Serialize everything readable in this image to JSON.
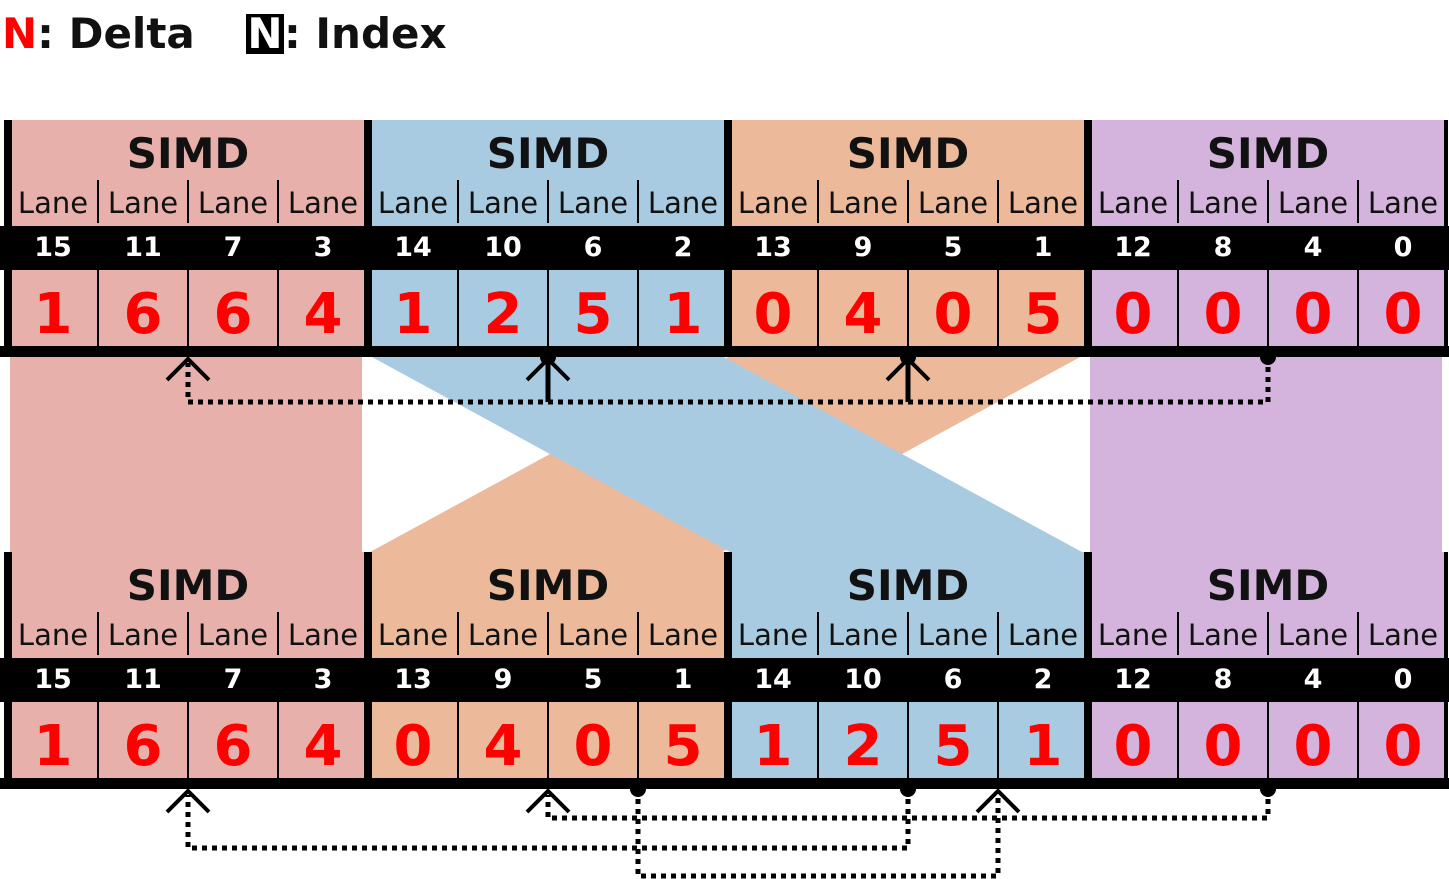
{
  "legend": {
    "delta_letter": "N",
    "delta_text": ": Delta",
    "index_letter": "N",
    "index_text": ": Index"
  },
  "colors": {
    "red": "#e8b0ab",
    "blue": "#a9cbe2",
    "orange": "#ecb99a",
    "purple": "#d4b4dc",
    "delta_text": "#ff0000",
    "bar": "#000000",
    "arrow": "#000000"
  },
  "lane_word": "Lane",
  "simd_word": "SIMD",
  "rows": [
    {
      "name": "top",
      "groups": [
        {
          "color": "red",
          "lanes": [
            {
              "index": "15",
              "delta": "1"
            },
            {
              "index": "11",
              "delta": "6"
            },
            {
              "index": "7",
              "delta": "6"
            },
            {
              "index": "3",
              "delta": "4"
            }
          ]
        },
        {
          "color": "blue",
          "lanes": [
            {
              "index": "14",
              "delta": "1"
            },
            {
              "index": "10",
              "delta": "2"
            },
            {
              "index": "6",
              "delta": "5"
            },
            {
              "index": "2",
              "delta": "1"
            }
          ]
        },
        {
          "color": "orange",
          "lanes": [
            {
              "index": "13",
              "delta": "0"
            },
            {
              "index": "9",
              "delta": "4"
            },
            {
              "index": "5",
              "delta": "0"
            },
            {
              "index": "1",
              "delta": "5"
            }
          ]
        },
        {
          "color": "purple",
          "lanes": [
            {
              "index": "12",
              "delta": "0"
            },
            {
              "index": "8",
              "delta": "0"
            },
            {
              "index": "4",
              "delta": "0"
            },
            {
              "index": "0",
              "delta": "0"
            }
          ]
        }
      ]
    },
    {
      "name": "bottom",
      "groups": [
        {
          "color": "red",
          "lanes": [
            {
              "index": "15",
              "delta": "1"
            },
            {
              "index": "11",
              "delta": "6"
            },
            {
              "index": "7",
              "delta": "6"
            },
            {
              "index": "3",
              "delta": "4"
            }
          ]
        },
        {
          "color": "orange",
          "lanes": [
            {
              "index": "13",
              "delta": "0"
            },
            {
              "index": "9",
              "delta": "4"
            },
            {
              "index": "5",
              "delta": "0"
            },
            {
              "index": "1",
              "delta": "5"
            }
          ]
        },
        {
          "color": "blue",
          "lanes": [
            {
              "index": "14",
              "delta": "1"
            },
            {
              "index": "10",
              "delta": "2"
            },
            {
              "index": "6",
              "delta": "5"
            },
            {
              "index": "2",
              "delta": "1"
            }
          ]
        },
        {
          "color": "purple",
          "lanes": [
            {
              "index": "12",
              "delta": "0"
            },
            {
              "index": "8",
              "delta": "0"
            },
            {
              "index": "4",
              "delta": "0"
            },
            {
              "index": "0",
              "delta": "0"
            }
          ]
        }
      ]
    }
  ],
  "dependencies": {
    "top": [
      {
        "from_group": 1,
        "from_lane": 1,
        "to_group": 0,
        "to_lane": 1
      },
      {
        "from_group": 2,
        "from_lane": 1,
        "to_group": 1,
        "to_lane": 1
      },
      {
        "from_group": 3,
        "from_lane": 1,
        "to_group": 2,
        "to_lane": 1
      }
    ],
    "bottom": [
      {
        "from_group": 2,
        "from_lane": 1,
        "to_group": 0,
        "to_lane": 1
      },
      {
        "from_group": 3,
        "from_lane": 1,
        "to_group": 1,
        "to_lane": 1
      },
      {
        "from_group": 1,
        "from_lane": 2,
        "to_group": 2,
        "to_lane": 2
      }
    ]
  }
}
